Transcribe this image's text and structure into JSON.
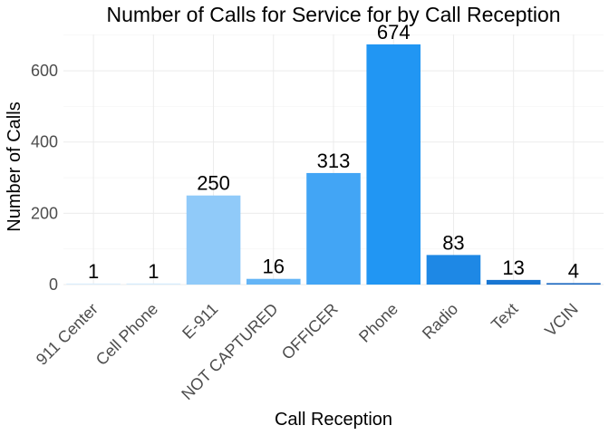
{
  "chart_data": {
    "type": "bar",
    "title": "Number of Calls for Service for by Call Reception",
    "xlabel": "Call Reception",
    "ylabel": "Number of Calls",
    "categories": [
      "911 Center",
      "Cell Phone",
      "E-911",
      "NOT CAPTURED",
      "OFFICER",
      "Phone",
      "Radio",
      "Text",
      "VCIN"
    ],
    "values": [
      1,
      1,
      250,
      16,
      313,
      674,
      83,
      13,
      4
    ],
    "ylim": [
      0,
      700
    ],
    "yticks": [
      0,
      200,
      400,
      600
    ],
    "grid": true,
    "legend": "none",
    "color_scale": {
      "low": "#c6e6fb",
      "mid": "#90caf9",
      "high": "#2196f3",
      "dark": "#1565c0"
    },
    "bar_colors": [
      "#dbeefc",
      "#d5ebfc",
      "#90caf9",
      "#64b5f6",
      "#42a5f5",
      "#2196f3",
      "#1e88e5",
      "#1976d2",
      "#1565c0"
    ]
  }
}
